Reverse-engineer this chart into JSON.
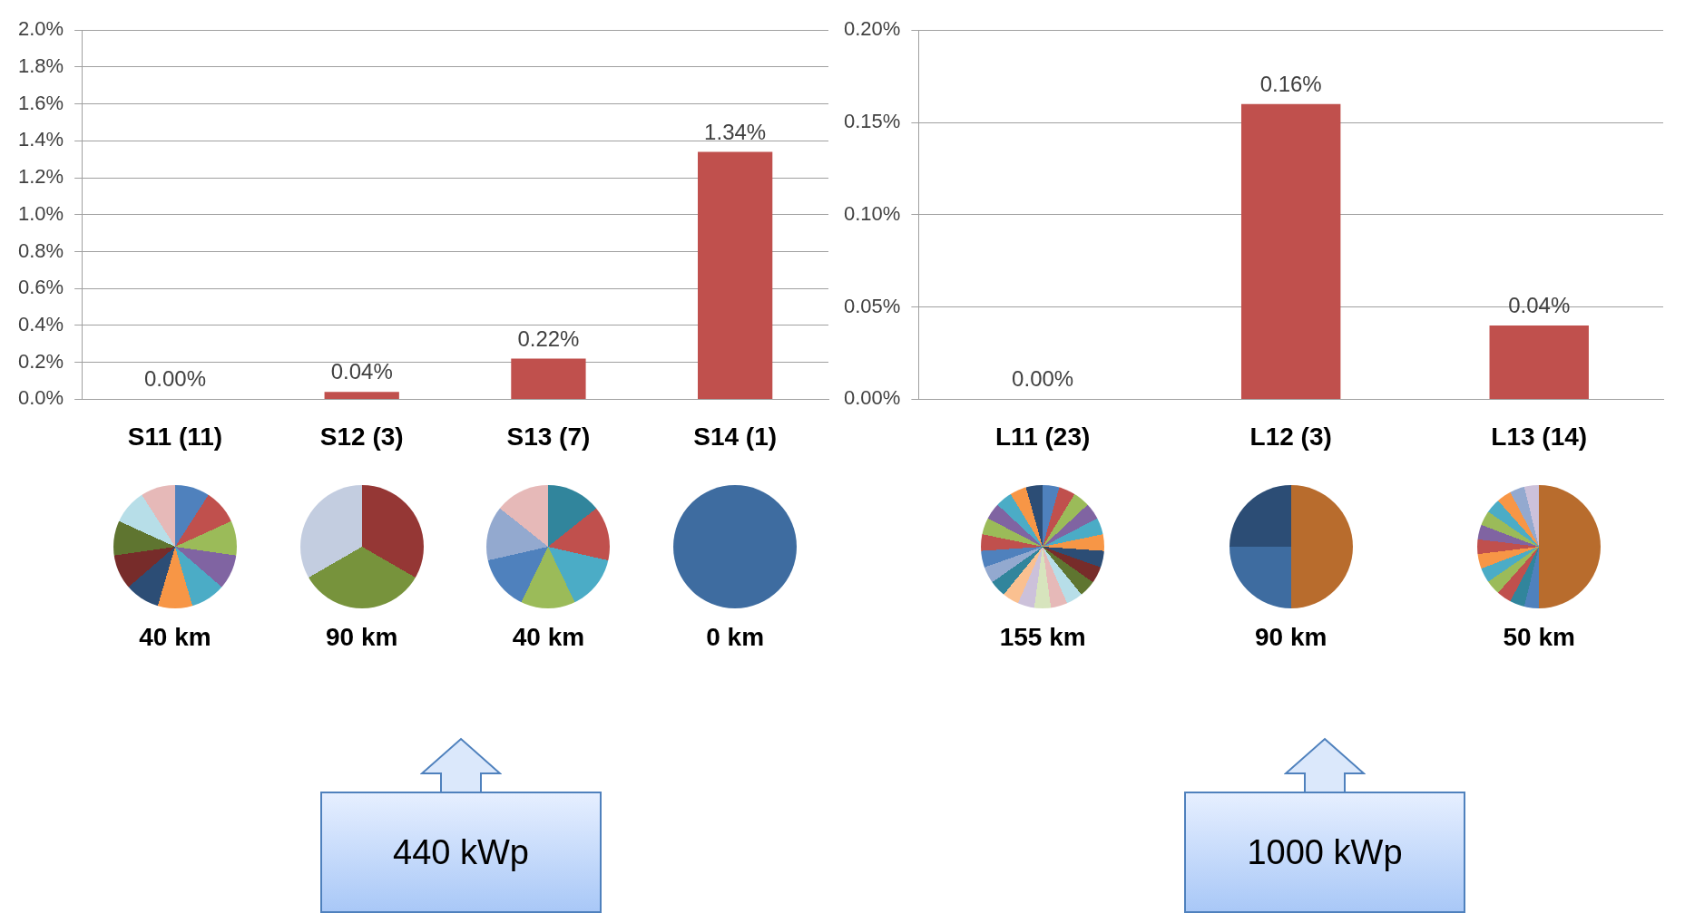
{
  "chart_data": [
    {
      "type": "bar",
      "categories": [
        "S11 (11)",
        "S12 (3)",
        "S13 (7)",
        "S14 (1)"
      ],
      "values": [
        0,
        0.04,
        0.22,
        1.34
      ],
      "value_labels": [
        "0.00%",
        "0.04%",
        "0.22%",
        "1.34%"
      ],
      "color": "#c0504d",
      "ylim": [
        0,
        2
      ],
      "yticks": [
        {
          "value": 0,
          "label": "0.0%"
        },
        {
          "value": 0.2,
          "label": "0.2%"
        },
        {
          "value": 0.4,
          "label": "0.4%"
        },
        {
          "value": 0.6,
          "label": "0.6%"
        },
        {
          "value": 0.8,
          "label": "0.8%"
        },
        {
          "value": 1,
          "label": "1.0%"
        },
        {
          "value": 1.2,
          "label": "1.2%"
        },
        {
          "value": 1.4,
          "label": "1.4%"
        },
        {
          "value": 1.6,
          "label": "1.6%"
        },
        {
          "value": 1.8,
          "label": "1.8%"
        },
        {
          "value": 2,
          "label": "2.0%"
        }
      ],
      "grid": "y",
      "annotations": [
        "40 km",
        "90 km",
        "40 km",
        "0 km",
        "440 kWp"
      ]
    },
    {
      "type": "bar",
      "categories": [
        "L11 (23)",
        "L12 (3)",
        "L13 (14)"
      ],
      "values": [
        0,
        0.16,
        0.04
      ],
      "value_labels": [
        "0.00%",
        "0.16%",
        "0.04%"
      ],
      "color": "#c0504d",
      "ylim": [
        0,
        0.2
      ],
      "yticks": [
        {
          "value": 0,
          "label": "0.00%"
        },
        {
          "value": 0.05,
          "label": "0.05%"
        },
        {
          "value": 0.1,
          "label": "0.10%"
        },
        {
          "value": 0.15,
          "label": "0.15%"
        },
        {
          "value": 0.2,
          "label": "0.20%"
        }
      ],
      "grid": "y",
      "annotations": [
        "155 km",
        "90 km",
        "50 km",
        "1000 kWp"
      ]
    }
  ]
}
